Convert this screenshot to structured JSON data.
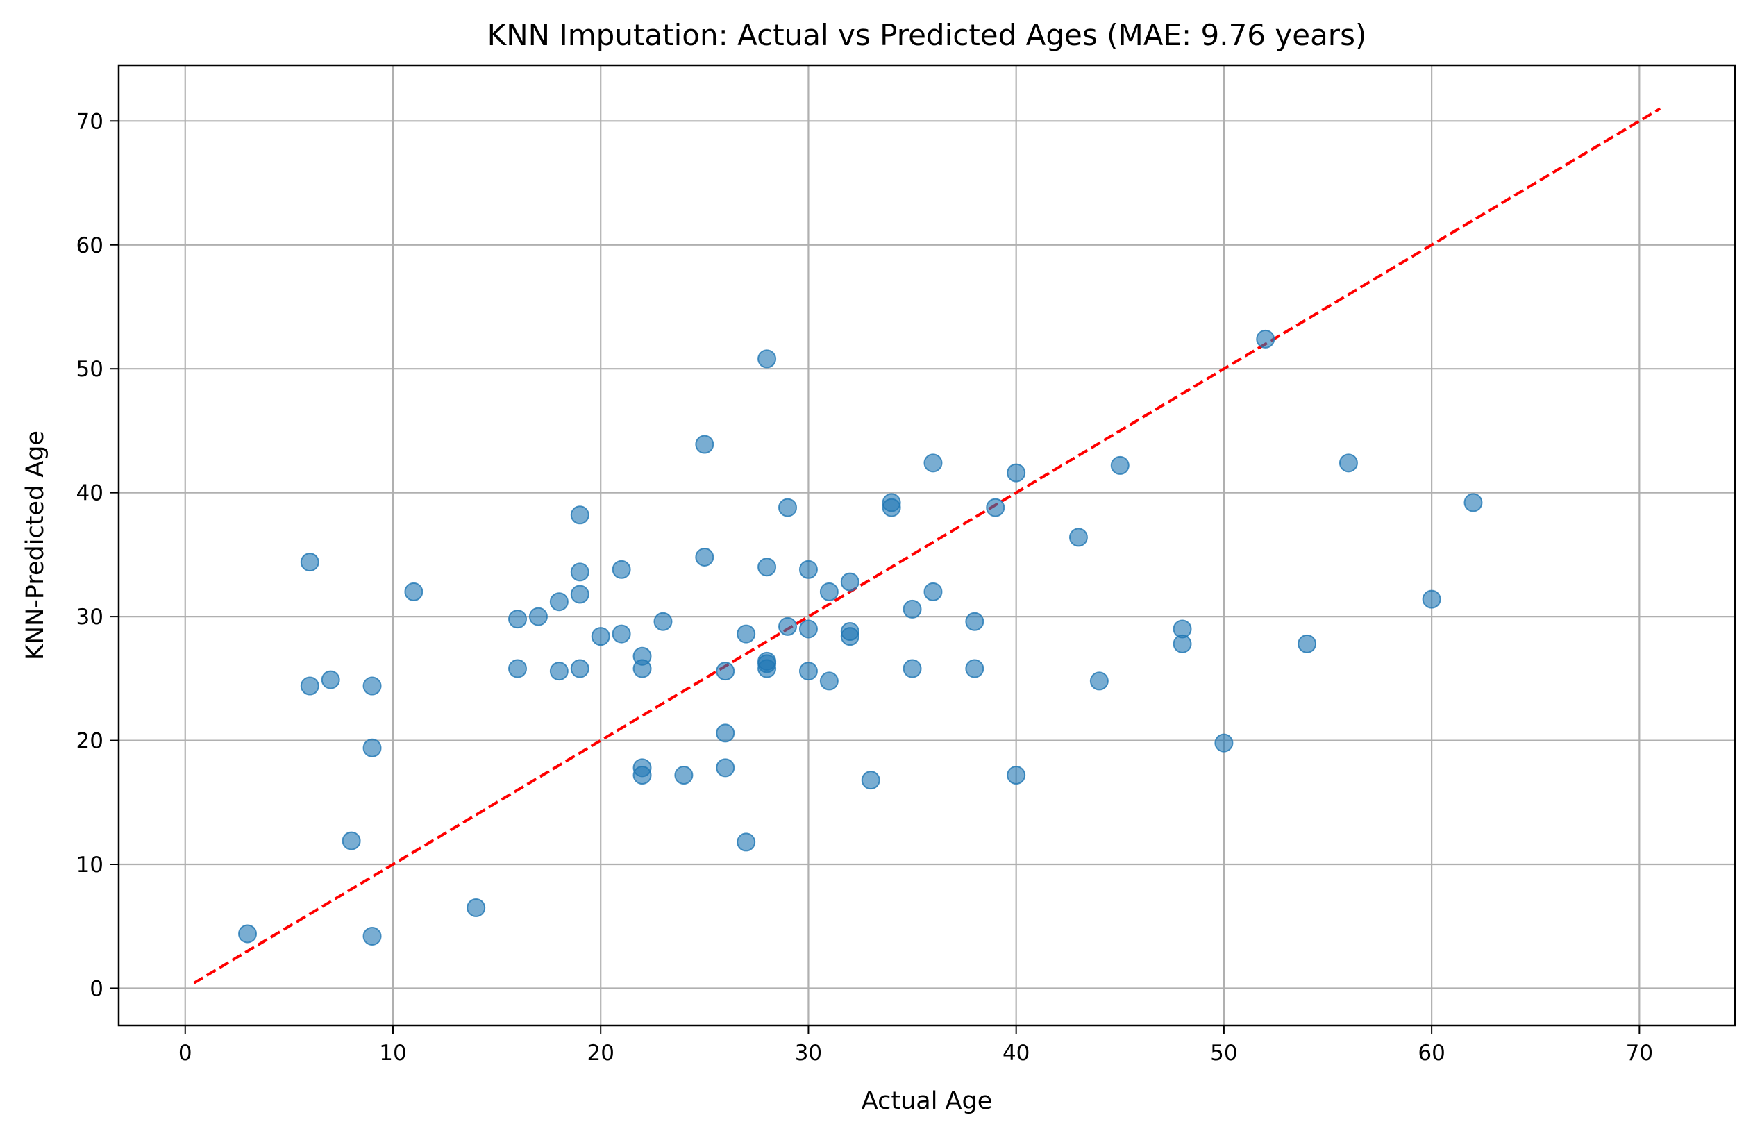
{
  "chart_data": {
    "type": "scatter",
    "title": "KNN Imputation: Actual vs Predicted Ages (MAE: 9.76 years)",
    "xlabel": "Actual Age",
    "ylabel": "KNN-Predicted Age",
    "xlim": [
      -3.2,
      74.6
    ],
    "ylim": [
      -3.0,
      74.5
    ],
    "xticks": [
      0,
      10,
      20,
      30,
      40,
      50,
      60,
      70
    ],
    "yticks": [
      0,
      10,
      20,
      30,
      40,
      50,
      60,
      70
    ],
    "grid": true,
    "colors": {
      "points": "#1f77b4",
      "reference_line": "#ff0000",
      "grid": "#b0b0b0",
      "axes": "#000000"
    },
    "reference_line": {
      "style": "dashed",
      "x": [
        0.42,
        71.0
      ],
      "y": [
        0.42,
        71.0
      ]
    },
    "series": [
      {
        "marker": "circle",
        "points": [
          [
            3,
            4.4
          ],
          [
            6,
            34.4
          ],
          [
            6,
            24.4
          ],
          [
            7,
            24.9
          ],
          [
            8,
            11.9
          ],
          [
            9,
            24.4
          ],
          [
            9,
            19.4
          ],
          [
            9,
            4.2
          ],
          [
            11,
            32.0
          ],
          [
            14,
            6.5
          ],
          [
            16,
            29.8
          ],
          [
            16,
            25.8
          ],
          [
            17,
            30.0
          ],
          [
            18,
            31.2
          ],
          [
            18,
            25.6
          ],
          [
            19,
            38.2
          ],
          [
            19,
            33.6
          ],
          [
            19,
            31.8
          ],
          [
            19,
            25.8
          ],
          [
            20,
            28.4
          ],
          [
            21,
            33.8
          ],
          [
            21,
            28.6
          ],
          [
            22,
            26.8
          ],
          [
            22,
            25.8
          ],
          [
            22,
            17.8
          ],
          [
            22,
            17.2
          ],
          [
            23,
            29.6
          ],
          [
            24,
            17.2
          ],
          [
            25,
            43.9
          ],
          [
            25,
            34.8
          ],
          [
            26,
            25.6
          ],
          [
            26,
            20.6
          ],
          [
            26,
            17.8
          ],
          [
            27,
            28.6
          ],
          [
            27,
            11.8
          ],
          [
            28,
            50.8
          ],
          [
            28,
            34.0
          ],
          [
            28,
            26.4
          ],
          [
            28,
            26.2
          ],
          [
            28,
            25.8
          ],
          [
            29,
            38.8
          ],
          [
            29,
            29.2
          ],
          [
            30,
            33.8
          ],
          [
            30,
            29.0
          ],
          [
            30,
            25.6
          ],
          [
            31,
            32.0
          ],
          [
            31,
            24.8
          ],
          [
            32,
            32.8
          ],
          [
            32,
            28.8
          ],
          [
            32,
            28.4
          ],
          [
            33,
            16.8
          ],
          [
            34,
            39.2
          ],
          [
            34,
            38.8
          ],
          [
            35,
            30.6
          ],
          [
            35,
            25.8
          ],
          [
            36,
            42.4
          ],
          [
            36,
            32.0
          ],
          [
            38,
            29.6
          ],
          [
            38,
            25.8
          ],
          [
            39,
            38.8
          ],
          [
            40,
            41.6
          ],
          [
            40,
            17.2
          ],
          [
            43,
            36.4
          ],
          [
            44,
            24.8
          ],
          [
            45,
            42.2
          ],
          [
            48,
            29.0
          ],
          [
            48,
            27.8
          ],
          [
            50,
            19.8
          ],
          [
            52,
            52.4
          ],
          [
            54,
            27.8
          ],
          [
            56,
            42.4
          ],
          [
            60,
            31.4
          ],
          [
            62,
            39.2
          ]
        ]
      }
    ]
  }
}
